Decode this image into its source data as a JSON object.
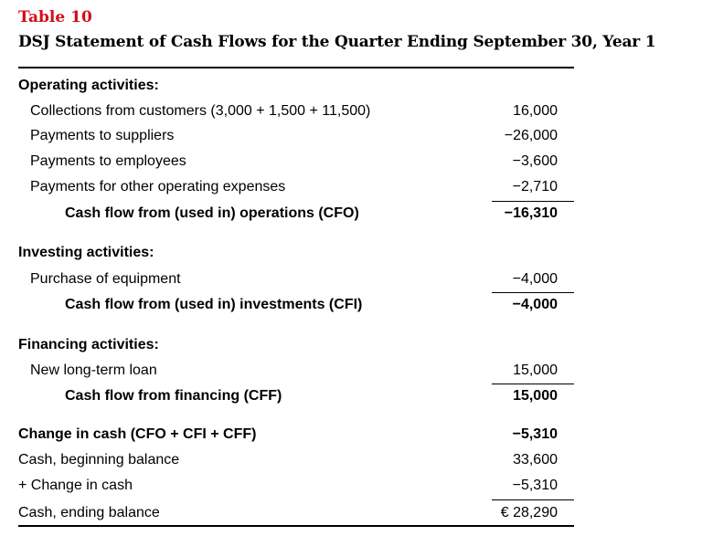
{
  "table": {
    "label": "Table 10",
    "title": "DSJ Statement of Cash Flows for the Quarter Ending September 30, Year 1"
  },
  "operating": {
    "header": "Operating activities:",
    "items": [
      {
        "label": "Collections from customers (3,000 + 1,500 + 11,500)",
        "value": "16,000"
      },
      {
        "label": "Payments to suppliers",
        "value": "−26,000"
      },
      {
        "label": "Payments to employees",
        "value": "−3,600"
      },
      {
        "label": "Payments for other operating expenses",
        "value": "−2,710"
      }
    ],
    "total": {
      "label": "Cash flow from (used in) operations (CFO)",
      "value": "−16,310"
    }
  },
  "investing": {
    "header": "Investing activities:",
    "items": [
      {
        "label": "Purchase of equipment",
        "value": "−4,000"
      }
    ],
    "total": {
      "label": "Cash flow from (used in) investments (CFI)",
      "value": "−4,000"
    }
  },
  "financing": {
    "header": "Financing activities:",
    "items": [
      {
        "label": "New long-term loan",
        "value": "15,000"
      }
    ],
    "total": {
      "label": "Cash flow from financing (CFF)",
      "value": "15,000"
    }
  },
  "summary": {
    "change": {
      "label": "Change in cash (CFO + CFI + CFF)",
      "value": "−5,310"
    },
    "beginning": {
      "label": "Cash, beginning balance",
      "value": "33,600"
    },
    "plus_change": {
      "label": "+ Change in cash",
      "value": "−5,310"
    },
    "ending": {
      "label": "Cash, ending balance",
      "value": "€ 28,290"
    }
  }
}
